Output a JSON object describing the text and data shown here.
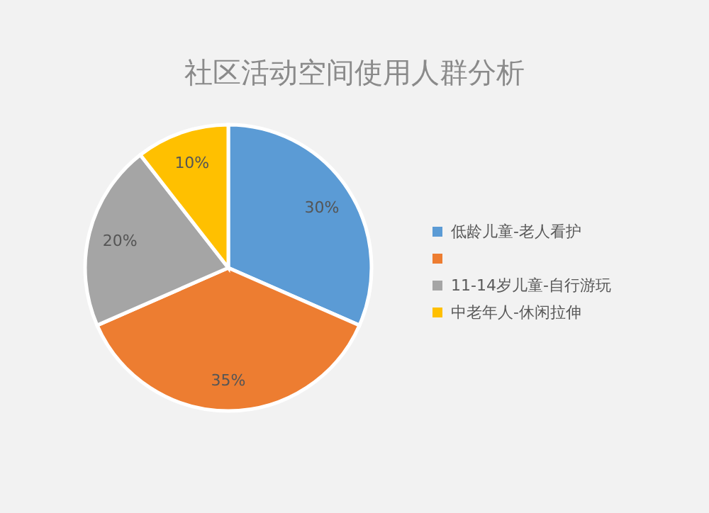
{
  "chart_data": {
    "type": "pie",
    "title": "社区活动空间使用人群分析",
    "categories": [
      "低龄儿童-老人看护",
      null,
      "11-14岁儿童-自行游玩",
      "中老年人-休闲拉伸"
    ],
    "values": [
      30,
      35,
      20,
      10
    ],
    "colors": [
      "#5b9bd5",
      "#ed7d31",
      "#a5a5a5",
      "#ffc000"
    ],
    "value_labels": [
      "30%",
      "35%",
      "20%",
      "10%"
    ],
    "legend": "right"
  }
}
